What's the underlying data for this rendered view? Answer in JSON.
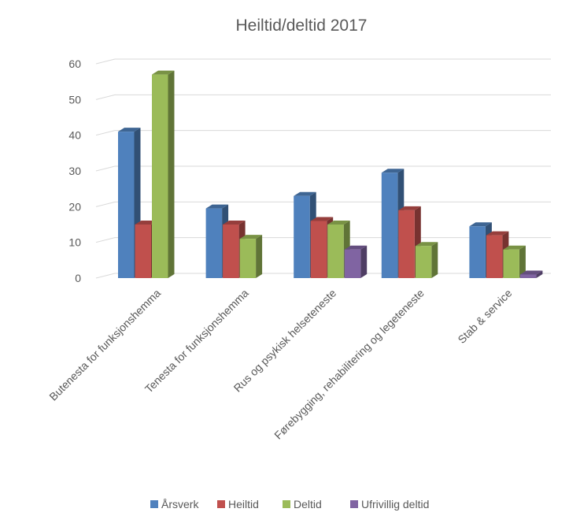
{
  "chart_data": {
    "type": "bar",
    "title": "Heiltid/deltid 2017",
    "categories": [
      "Butenesta for funksjonshemma",
      "Tenesta for funksjonshemma",
      "Rus og psykisk helseteneste",
      "Førebygging, rehabilitering og legeteneste",
      "Stab & service"
    ],
    "series": [
      {
        "name": "Årsverk",
        "color": "#4f81bd",
        "values": [
          41,
          19.5,
          23,
          29.5,
          14.5
        ]
      },
      {
        "name": "Heiltid",
        "color": "#c0504d",
        "values": [
          15,
          15,
          16,
          19,
          12
        ]
      },
      {
        "name": "Deltid",
        "color": "#9bbb59",
        "values": [
          57,
          11,
          15,
          9,
          8
        ]
      },
      {
        "name": "Ufrivillig deltid",
        "color": "#8064a2",
        "values": [
          0,
          0,
          8,
          0,
          1
        ]
      }
    ],
    "yticks": [
      0,
      10,
      20,
      30,
      40,
      50,
      60
    ],
    "ylim": [
      0,
      60
    ],
    "grid": true,
    "legend_position": "bottom",
    "style": "3d-clustered-column"
  }
}
